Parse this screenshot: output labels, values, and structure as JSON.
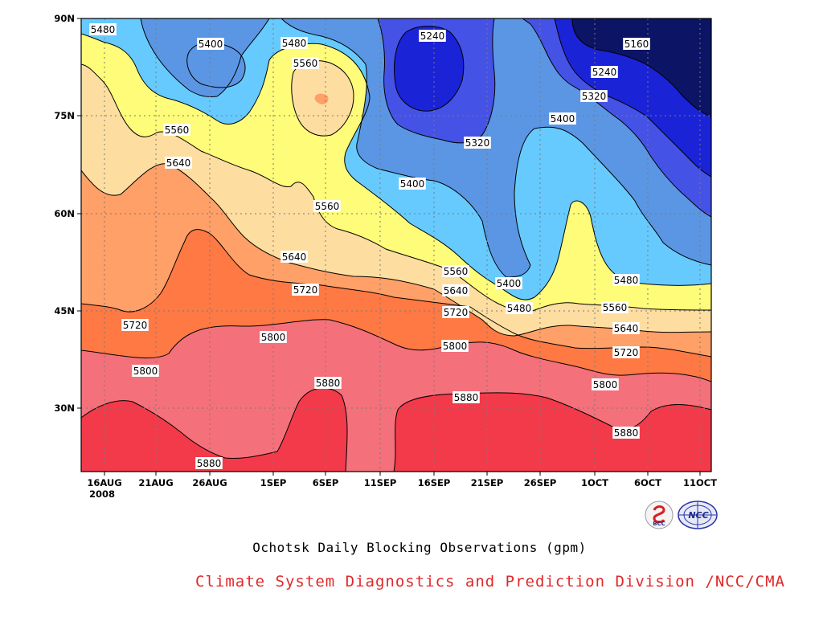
{
  "title": "Ochotsk Daily Blocking Observations (gpm)",
  "credit": "Climate System Diagnostics and Prediction Division /NCC/CMA",
  "logos": {
    "left": "BCC",
    "right": "NCC"
  },
  "chart_data": {
    "type": "contour",
    "title": "Ochotsk Daily Blocking Observations (gpm)",
    "units": "gpm",
    "x_tick_labels": [
      "16AUG",
      "21AUG",
      "26AUG",
      "1SEP",
      "6SEP",
      "11SEP",
      "16SEP",
      "21SEP",
      "26SEP",
      "1OCT",
      "6OCT",
      "11OCT"
    ],
    "x_year_label": "2008",
    "y_tick_labels": [
      "90N",
      "75N",
      "60N",
      "45N",
      "30N"
    ],
    "ylim": [
      20,
      90
    ],
    "grid": true,
    "contour_levels": [
      5160,
      5240,
      5320,
      5400,
      5480,
      5560,
      5640,
      5720,
      5800,
      5880
    ],
    "fill_colors": {
      "gt5880": "#f23a4a",
      "5800-5880": "#f4707a",
      "5720-5800": "#fe7943",
      "5640-5720": "#fea067",
      "5560-5640": "#fedea0",
      "5480-5560": "#fefc78",
      "5400-5480": "#66cafe",
      "5320-5400": "#5b96e4",
      "5240-5320": "#4552e6",
      "5160-5240": "#1a23d6",
      "lt5160": "#0c1465"
    },
    "contour_labels": [
      "5480",
      "5400",
      "5480",
      "5560",
      "5240",
      "5160",
      "5240",
      "5320",
      "5320",
      "5400",
      "5560",
      "5640",
      "5400",
      "5560",
      "5640",
      "5720",
      "5560",
      "5640",
      "5400",
      "5480",
      "5480",
      "5560",
      "5720",
      "5720",
      "5640",
      "5800",
      "5800",
      "5800",
      "5720",
      "5800",
      "5880",
      "5880",
      "5880",
      "5880"
    ]
  }
}
